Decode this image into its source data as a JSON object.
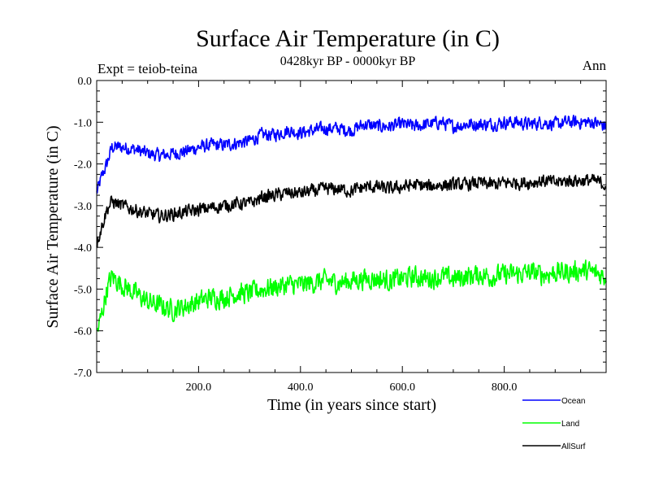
{
  "chart_data": {
    "type": "line",
    "title": "Surface Air Temperature (in C)",
    "subtitle": "0428kyr BP - 0000kyr BP",
    "expt_label": "Expt = teiob-teina",
    "season_label": "Ann",
    "xlabel": "Time (in years since start)",
    "ylabel": "Surface Air Temperature (in C)",
    "xlim": [
      0,
      1000
    ],
    "ylim": [
      -7.0,
      0.0
    ],
    "xticks": [
      200,
      400,
      600,
      800
    ],
    "xtick_labels": [
      "200.0",
      "400.0",
      "600.0",
      "800.0"
    ],
    "yticks": [
      0,
      -1,
      -2,
      -3,
      -4,
      -5,
      -6,
      -7
    ],
    "ytick_labels": [
      "0.0",
      "-1.0",
      "-2.0",
      "-3.0",
      "-4.0",
      "-5.0",
      "-6.0",
      "-7.0"
    ],
    "legend_position": "bottom-right, below plot",
    "series": [
      {
        "name": "Ocean",
        "color": "#0000ff",
        "x": [
          0,
          10,
          20,
          30,
          50,
          75,
          100,
          125,
          150,
          175,
          200,
          225,
          250,
          275,
          300,
          325,
          350,
          375,
          400,
          425,
          450,
          475,
          500,
          525,
          550,
          575,
          600,
          625,
          650,
          675,
          700,
          725,
          750,
          775,
          800,
          825,
          850,
          875,
          900,
          925,
          950,
          975,
          1000
        ],
        "values": [
          -2.7,
          -2.3,
          -2.0,
          -1.6,
          -1.6,
          -1.65,
          -1.75,
          -1.8,
          -1.75,
          -1.7,
          -1.6,
          -1.55,
          -1.55,
          -1.5,
          -1.45,
          -1.3,
          -1.3,
          -1.2,
          -1.25,
          -1.2,
          -1.15,
          -1.15,
          -1.2,
          -1.05,
          -1.1,
          -1.1,
          -1.05,
          -1.1,
          -1.05,
          -1.0,
          -1.1,
          -1.05,
          -1.05,
          -1.05,
          -1.0,
          -1.0,
          -1.05,
          -1.0,
          -1.05,
          -1.0,
          -1.0,
          -1.0,
          -1.1
        ]
      },
      {
        "name": "Land",
        "color": "#00ff00",
        "x": [
          0,
          10,
          20,
          30,
          50,
          75,
          100,
          125,
          150,
          175,
          200,
          225,
          250,
          275,
          300,
          325,
          350,
          375,
          400,
          425,
          450,
          475,
          500,
          525,
          550,
          575,
          600,
          625,
          650,
          675,
          700,
          725,
          750,
          775,
          800,
          825,
          850,
          875,
          900,
          925,
          950,
          975,
          1000
        ],
        "values": [
          -6.1,
          -5.6,
          -5.0,
          -4.7,
          -4.9,
          -5.1,
          -5.3,
          -5.4,
          -5.5,
          -5.4,
          -5.3,
          -5.2,
          -5.2,
          -5.1,
          -5.1,
          -5.0,
          -4.95,
          -4.9,
          -4.9,
          -4.85,
          -4.8,
          -4.85,
          -4.8,
          -4.75,
          -4.75,
          -4.8,
          -4.75,
          -4.7,
          -4.75,
          -4.7,
          -4.75,
          -4.7,
          -4.65,
          -4.7,
          -4.65,
          -4.65,
          -4.6,
          -4.65,
          -4.6,
          -4.6,
          -4.55,
          -4.6,
          -4.7
        ]
      },
      {
        "name": "AllSurf",
        "color": "#000000",
        "x": [
          0,
          10,
          20,
          30,
          50,
          75,
          100,
          125,
          150,
          175,
          200,
          225,
          250,
          275,
          300,
          325,
          350,
          375,
          400,
          425,
          450,
          475,
          500,
          525,
          550,
          575,
          600,
          625,
          650,
          675,
          700,
          725,
          750,
          775,
          800,
          825,
          850,
          875,
          900,
          925,
          950,
          975,
          1000
        ],
        "values": [
          -3.9,
          -3.5,
          -3.1,
          -2.9,
          -3.0,
          -3.1,
          -3.2,
          -3.25,
          -3.2,
          -3.15,
          -3.1,
          -3.05,
          -3.0,
          -2.95,
          -2.95,
          -2.8,
          -2.75,
          -2.7,
          -2.7,
          -2.65,
          -2.6,
          -2.6,
          -2.65,
          -2.55,
          -2.55,
          -2.6,
          -2.55,
          -2.5,
          -2.55,
          -2.5,
          -2.5,
          -2.5,
          -2.45,
          -2.5,
          -2.45,
          -2.45,
          -2.45,
          -2.4,
          -2.45,
          -2.4,
          -2.4,
          -2.4,
          -2.5
        ]
      }
    ]
  }
}
